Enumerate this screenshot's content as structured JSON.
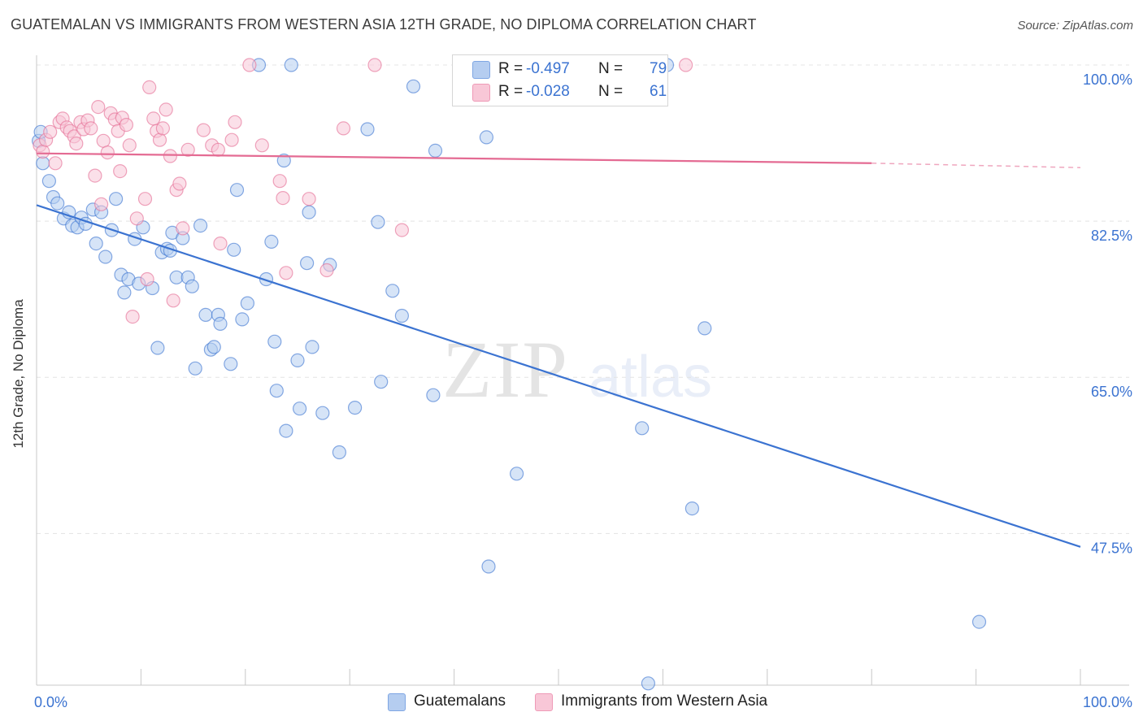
{
  "title": "GUATEMALAN VS IMMIGRANTS FROM WESTERN ASIA 12TH GRADE, NO DIPLOMA CORRELATION CHART",
  "source": "Source: ZipAtlas.com",
  "watermark": {
    "zip": "ZIP",
    "atlas": "atlas"
  },
  "legend_stats": [
    {
      "r_label": "R =",
      "r_value": "-0.497",
      "n_label": "N =",
      "n_value": "79",
      "color": "#8fb2e8"
    },
    {
      "r_label": "R =",
      "r_value": "-0.028",
      "n_label": "N =",
      "n_value": "61",
      "color": "#f4a8c0"
    }
  ],
  "chart_data": {
    "type": "scatter",
    "title": "GUATEMALAN VS IMMIGRANTS FROM WESTERN ASIA 12TH GRADE, NO DIPLOMA CORRELATION CHART",
    "xlabel": "",
    "ylabel": "12th Grade, No Diploma",
    "xlim": [
      0,
      100
    ],
    "ylim": [
      30.5,
      100
    ],
    "x_tick_labels": [
      "0.0%",
      "100.0%"
    ],
    "y_ticks": [
      100,
      82.5,
      65,
      47.5
    ],
    "y_tick_labels": [
      "100.0%",
      "82.5%",
      "65.0%",
      "47.5%"
    ],
    "grid": true,
    "legend_position": "bottom",
    "series": [
      {
        "name": "Guatemalans",
        "color": "#3b73d1",
        "fill": "#b5cdf0",
        "trend": {
          "x0": 0,
          "y0": 84.3,
          "x1": 100,
          "y1": 46.0
        },
        "points": [
          [
            0.2,
            91.5
          ],
          [
            0.4,
            92.5
          ],
          [
            0.6,
            89.0
          ],
          [
            1.2,
            87.0
          ],
          [
            1.6,
            85.2
          ],
          [
            2.0,
            84.5
          ],
          [
            2.6,
            82.8
          ],
          [
            3.1,
            83.5
          ],
          [
            3.4,
            82.0
          ],
          [
            3.9,
            81.8
          ],
          [
            4.3,
            82.9
          ],
          [
            4.7,
            82.2
          ],
          [
            5.4,
            83.8
          ],
          [
            6.2,
            83.5
          ],
          [
            7.6,
            85.0
          ],
          [
            5.7,
            80.0
          ],
          [
            6.6,
            78.5
          ],
          [
            7.2,
            81.5
          ],
          [
            8.1,
            76.5
          ],
          [
            8.4,
            74.5
          ],
          [
            8.8,
            76.0
          ],
          [
            9.4,
            80.5
          ],
          [
            9.8,
            75.5
          ],
          [
            10.2,
            81.8
          ],
          [
            11.1,
            75.0
          ],
          [
            11.6,
            68.3
          ],
          [
            12.0,
            79.0
          ],
          [
            12.5,
            79.4
          ],
          [
            12.8,
            79.2
          ],
          [
            13.0,
            81.2
          ],
          [
            13.4,
            76.2
          ],
          [
            14.0,
            80.6
          ],
          [
            14.5,
            76.2
          ],
          [
            14.9,
            75.2
          ],
          [
            15.2,
            66.0
          ],
          [
            15.7,
            82.0
          ],
          [
            16.2,
            72.0
          ],
          [
            16.7,
            68.1
          ],
          [
            17.0,
            68.4
          ],
          [
            17.4,
            72.0
          ],
          [
            17.6,
            71.0
          ],
          [
            18.6,
            66.5
          ],
          [
            18.9,
            79.3
          ],
          [
            19.2,
            86.0
          ],
          [
            19.7,
            71.5
          ],
          [
            20.2,
            73.3
          ],
          [
            21.3,
            100.0
          ],
          [
            22.0,
            76.0
          ],
          [
            22.5,
            80.2
          ],
          [
            22.8,
            69.0
          ],
          [
            23.0,
            63.5
          ],
          [
            23.7,
            89.3
          ],
          [
            23.9,
            59.0
          ],
          [
            24.4,
            100.0
          ],
          [
            25.0,
            66.9
          ],
          [
            25.2,
            61.5
          ],
          [
            25.9,
            77.8
          ],
          [
            26.1,
            83.5
          ],
          [
            26.4,
            68.4
          ],
          [
            27.4,
            61.0
          ],
          [
            28.1,
            77.6
          ],
          [
            29.0,
            56.6
          ],
          [
            30.5,
            61.6
          ],
          [
            31.7,
            92.8
          ],
          [
            32.7,
            82.4
          ],
          [
            33.0,
            64.5
          ],
          [
            34.1,
            74.7
          ],
          [
            35.0,
            71.9
          ],
          [
            36.1,
            97.6
          ],
          [
            38.0,
            63.0
          ],
          [
            38.2,
            90.4
          ],
          [
            43.1,
            91.9
          ],
          [
            43.3,
            43.8
          ],
          [
            46.0,
            54.2
          ],
          [
            58.0,
            59.3
          ],
          [
            58.6,
            30.7
          ],
          [
            60.4,
            100.0
          ],
          [
            62.8,
            50.3
          ],
          [
            64.0,
            70.5
          ],
          [
            90.3,
            37.6
          ]
        ]
      },
      {
        "name": "Immigrants from Western Asia",
        "color": "#e46b93",
        "fill": "#f8c7d7",
        "trend": {
          "x0": 0,
          "y0": 90.1,
          "x1": 80,
          "y1": 89.0,
          "dash_x1": 100,
          "dash_y1": 88.5
        },
        "points": [
          [
            0.3,
            91.0
          ],
          [
            0.6,
            90.3
          ],
          [
            0.9,
            91.6
          ],
          [
            1.3,
            92.5
          ],
          [
            1.8,
            89.0
          ],
          [
            2.2,
            93.6
          ],
          [
            2.5,
            94.0
          ],
          [
            2.9,
            93.0
          ],
          [
            3.2,
            92.6
          ],
          [
            3.6,
            92.0
          ],
          [
            3.8,
            91.2
          ],
          [
            4.2,
            93.6
          ],
          [
            4.5,
            92.8
          ],
          [
            4.9,
            93.8
          ],
          [
            5.2,
            92.9
          ],
          [
            5.6,
            87.6
          ],
          [
            5.9,
            95.3
          ],
          [
            6.2,
            84.4
          ],
          [
            6.4,
            91.5
          ],
          [
            6.8,
            90.2
          ],
          [
            7.1,
            94.6
          ],
          [
            7.5,
            93.9
          ],
          [
            7.8,
            92.6
          ],
          [
            8.0,
            88.1
          ],
          [
            8.2,
            94.1
          ],
          [
            8.6,
            93.3
          ],
          [
            8.9,
            91.0
          ],
          [
            9.2,
            71.8
          ],
          [
            9.6,
            82.8
          ],
          [
            10.4,
            85.0
          ],
          [
            10.6,
            76.0
          ],
          [
            10.8,
            97.5
          ],
          [
            11.2,
            94.0
          ],
          [
            11.5,
            92.6
          ],
          [
            11.8,
            91.6
          ],
          [
            12.1,
            92.9
          ],
          [
            12.4,
            95.0
          ],
          [
            12.8,
            89.8
          ],
          [
            13.1,
            73.6
          ],
          [
            13.4,
            86.0
          ],
          [
            13.7,
            86.7
          ],
          [
            14.0,
            81.7
          ],
          [
            14.5,
            90.5
          ],
          [
            16.0,
            92.7
          ],
          [
            16.8,
            91.0
          ],
          [
            17.4,
            90.5
          ],
          [
            17.6,
            80.0
          ],
          [
            18.7,
            91.6
          ],
          [
            19.0,
            93.6
          ],
          [
            20.4,
            100.0
          ],
          [
            21.6,
            91.0
          ],
          [
            23.3,
            87.0
          ],
          [
            23.6,
            85.1
          ],
          [
            23.9,
            76.7
          ],
          [
            26.1,
            85.0
          ],
          [
            27.8,
            77.0
          ],
          [
            29.4,
            92.9
          ],
          [
            32.4,
            100.0
          ],
          [
            35.0,
            81.5
          ],
          [
            47.5,
            100.0
          ],
          [
            62.2,
            100.0
          ]
        ]
      }
    ]
  }
}
